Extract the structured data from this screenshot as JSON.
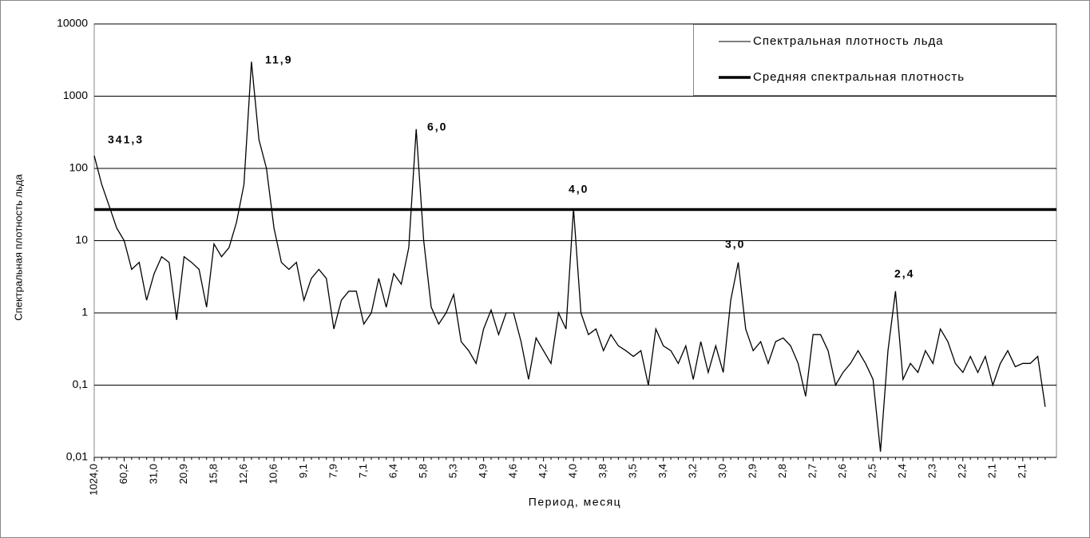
{
  "chart_data": {
    "type": "line",
    "y_label": "Спектральная плотность льда",
    "x_label": "Период, месяц",
    "log_y": true,
    "grid": true,
    "legend": "upper right",
    "ylim": [
      0.01,
      10000
    ],
    "yticks": [
      {
        "value": 0.01,
        "label": "0,01"
      },
      {
        "value": 0.1,
        "label": "0,1"
      },
      1,
      10,
      100,
      1000,
      10000
    ],
    "categories": [
      "1024,0",
      null,
      null,
      null,
      "60,2",
      null,
      null,
      null,
      "31,0",
      null,
      null,
      null,
      "20,9",
      null,
      null,
      null,
      "15,8",
      null,
      null,
      null,
      "12,6",
      null,
      null,
      null,
      "10,6",
      null,
      null,
      null,
      "9,1",
      null,
      null,
      null,
      "7,9",
      null,
      null,
      null,
      "7,1",
      null,
      null,
      null,
      "6,4",
      null,
      null,
      null,
      "5,8",
      null,
      null,
      null,
      "5,3",
      null,
      null,
      null,
      "4,9",
      null,
      null,
      null,
      "4,6",
      null,
      null,
      null,
      "4,2",
      null,
      null,
      null,
      "4,0",
      null,
      null,
      null,
      "3,8",
      null,
      null,
      null,
      "3,5",
      null,
      null,
      null,
      "3,4",
      null,
      null,
      null,
      "3,2",
      null,
      null,
      null,
      "3,0",
      null,
      null,
      null,
      "2,9",
      null,
      null,
      null,
      "2,8",
      null,
      null,
      null,
      "2,7",
      null,
      null,
      null,
      "2,6",
      null,
      null,
      null,
      "2,5",
      null,
      null,
      null,
      "2,4",
      null,
      null,
      null,
      "2,3",
      null,
      null,
      null,
      "2,2",
      null,
      null,
      null,
      "2,1",
      null,
      null,
      null,
      "2,1",
      null,
      null,
      null
    ],
    "series": [
      {
        "name": "Спектральная плотность льда",
        "color": "#000000",
        "values": [
          150,
          60,
          30,
          15,
          10,
          4,
          5,
          1.5,
          3.5,
          6,
          5,
          0.8,
          6,
          5,
          4,
          1.2,
          9,
          6,
          8,
          18,
          60,
          3000,
          250,
          100,
          15,
          5,
          4,
          5,
          1.5,
          3,
          4,
          3,
          0.6,
          1.5,
          2,
          2,
          0.7,
          1,
          3,
          1.2,
          3.5,
          2.5,
          8,
          350,
          10,
          1.2,
          0.7,
          1,
          1.8,
          0.4,
          0.3,
          0.2,
          0.6,
          1.1,
          0.5,
          1,
          1,
          0.4,
          0.12,
          0.45,
          0.3,
          0.2,
          1,
          0.6,
          28,
          1,
          0.5,
          0.6,
          0.3,
          0.5,
          0.35,
          0.3,
          0.25,
          0.3,
          0.1,
          0.6,
          0.35,
          0.3,
          0.2,
          0.35,
          0.12,
          0.4,
          0.15,
          0.35,
          0.15,
          1.5,
          5,
          0.6,
          0.3,
          0.4,
          0.2,
          0.4,
          0.45,
          0.35,
          0.2,
          0.07,
          0.5,
          0.5,
          0.3,
          0.1,
          0.15,
          0.2,
          0.3,
          0.2,
          0.12,
          0.012,
          0.3,
          2,
          0.12,
          0.2,
          0.15,
          0.3,
          0.2,
          0.6,
          0.4,
          0.2,
          0.15,
          0.25,
          0.15,
          0.25,
          0.1,
          0.2,
          0.3,
          0.18,
          0.2,
          0.2,
          0.25,
          0.05
        ]
      }
    ],
    "mean": {
      "name": "Средняя спектральная плотность",
      "color": "#000000",
      "value": 27
    },
    "annotations": [
      "341,3",
      "11,9",
      "6,0",
      "4,0",
      "3,0",
      "2,4"
    ]
  }
}
